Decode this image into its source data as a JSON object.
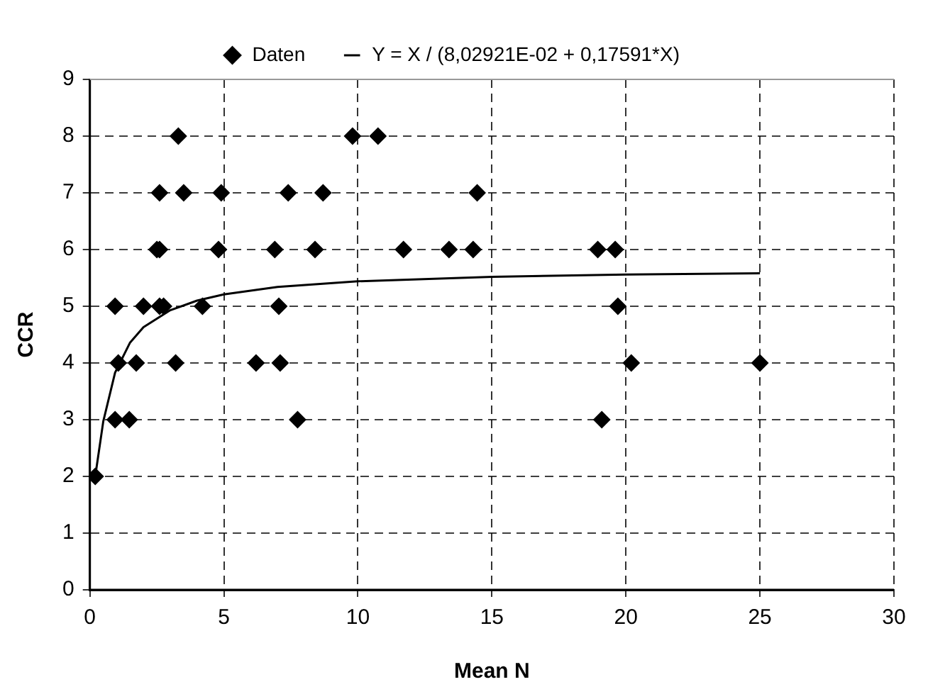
{
  "chart_data": {
    "type": "scatter",
    "xlabel": "Mean N",
    "ylabel": "CCR",
    "xlim": [
      0,
      30
    ],
    "xticks": [
      0,
      5,
      10,
      15,
      20,
      25,
      30
    ],
    "ylim": [
      0,
      9
    ],
    "yticks": [
      0,
      1,
      2,
      3,
      4,
      5,
      6,
      7,
      8,
      9
    ],
    "grid": true,
    "legend": "top",
    "marker": "diamond",
    "series": [
      {
        "name": "Daten",
        "type": "scatter",
        "color": "#000000",
        "x": [
          3.3,
          9.8,
          10.75,
          2.6,
          3.5,
          4.9,
          7.4,
          8.7,
          14.45,
          2.5,
          2.6,
          4.8,
          6.9,
          8.4,
          11.7,
          13.4,
          14.3,
          18.95,
          19.6,
          0.94,
          2.0,
          2.6,
          2.75,
          4.2,
          7.05,
          19.7,
          1.06,
          1.73,
          3.2,
          6.2,
          7.1,
          20.2,
          25.0,
          0.94,
          1.47,
          7.75,
          19.1,
          0.2
        ],
        "values": [
          8,
          8,
          8,
          7,
          7,
          7,
          7,
          7,
          7,
          6,
          6,
          6,
          6,
          6,
          6,
          6,
          6,
          6,
          6,
          5,
          5,
          5,
          5,
          5,
          5,
          5,
          4,
          4,
          4,
          4,
          4,
          4,
          4,
          3,
          3,
          3,
          3,
          2
        ]
      },
      {
        "name": "Y = X / (8,02921E-02 + 0,17591*X)",
        "type": "line",
        "color": "#000000",
        "marker": "none",
        "line_style": "solid",
        "x": [
          0.2,
          0.5,
          0.94,
          1.5,
          2,
          3,
          4,
          5,
          7,
          10,
          15,
          20,
          25
        ],
        "values": [
          2.0,
          2.97,
          3.83,
          4.36,
          4.63,
          4.93,
          5.1,
          5.21,
          5.34,
          5.44,
          5.52,
          5.56,
          5.58
        ]
      }
    ]
  }
}
